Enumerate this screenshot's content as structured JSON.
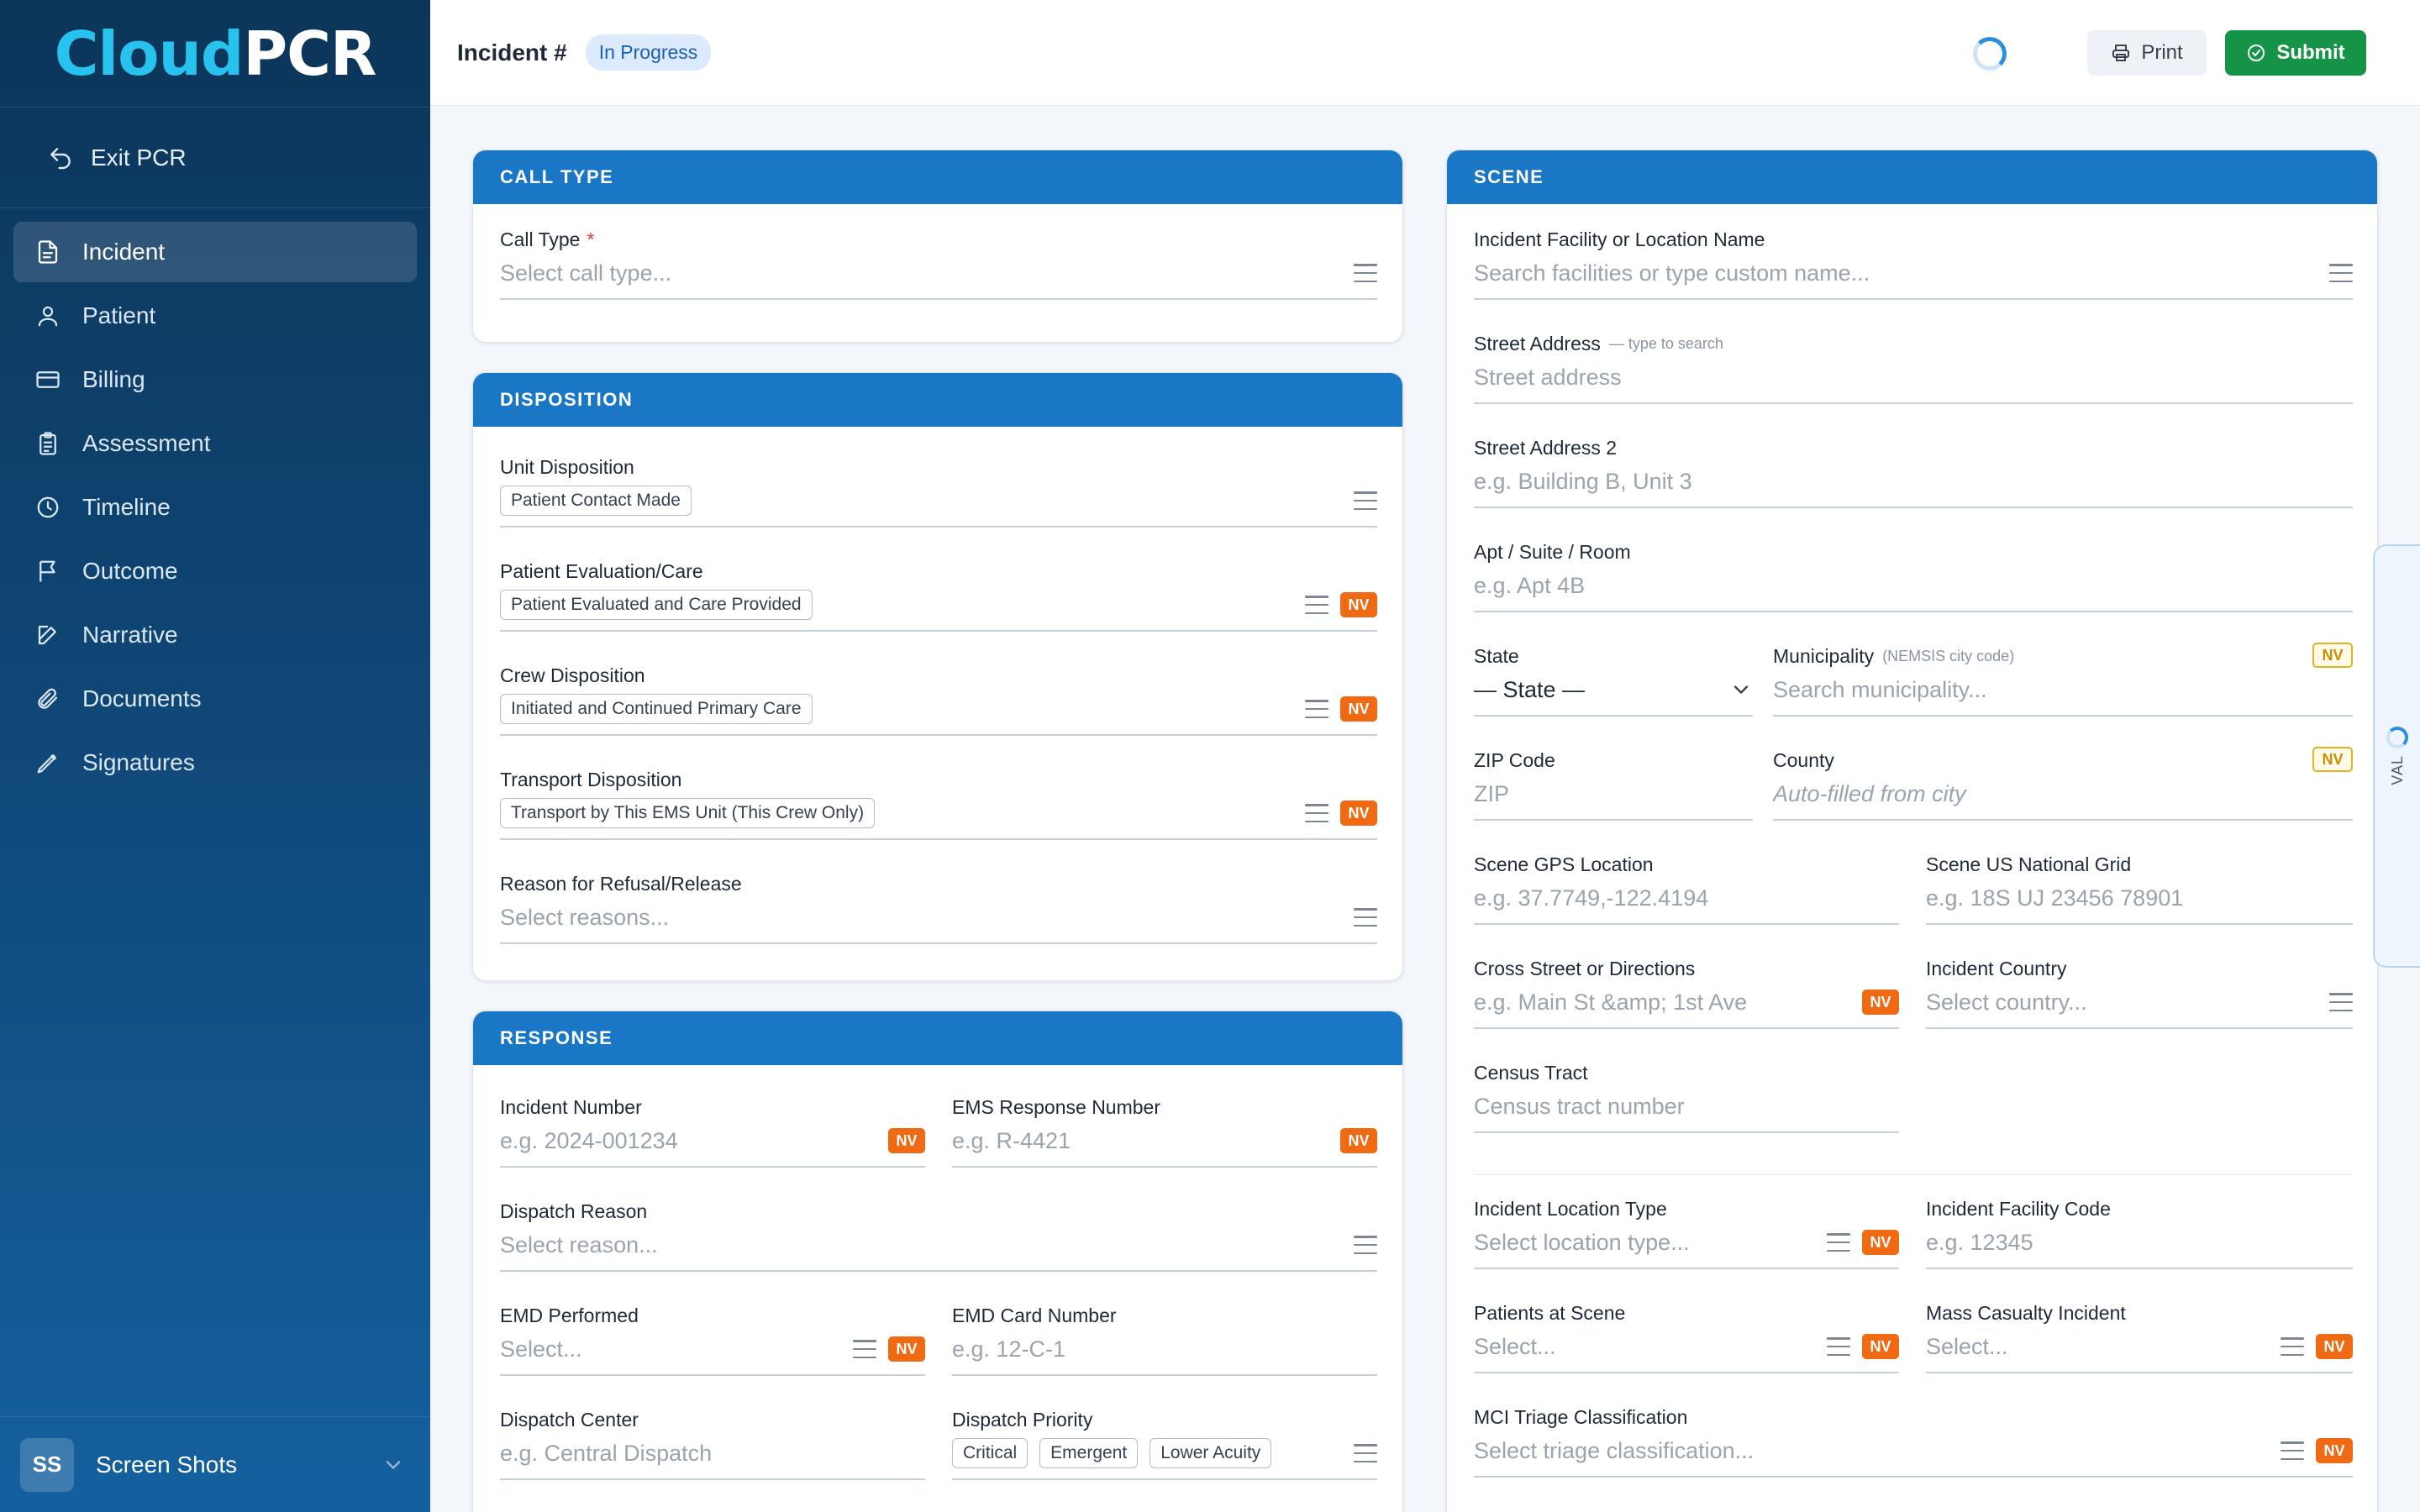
{
  "app": {
    "logo_part1": "Cloud",
    "logo_part2": "PCR",
    "brand_color": "#1977c6",
    "accent_cyan": "#27c3ee"
  },
  "sidebar": {
    "exit_label": "Exit PCR",
    "items": [
      {
        "label": "Incident",
        "icon": "document-icon",
        "active": true
      },
      {
        "label": "Patient",
        "icon": "person-icon"
      },
      {
        "label": "Billing",
        "icon": "credit-card-icon"
      },
      {
        "label": "Assessment",
        "icon": "clipboard-icon"
      },
      {
        "label": "Timeline",
        "icon": "clock-icon"
      },
      {
        "label": "Outcome",
        "icon": "flag-icon"
      },
      {
        "label": "Narrative",
        "icon": "edit-icon"
      },
      {
        "label": "Documents",
        "icon": "paperclip-icon"
      },
      {
        "label": "Signatures",
        "icon": "pen-icon"
      }
    ],
    "user": {
      "initials": "SS",
      "name": "Screen Shots"
    }
  },
  "header": {
    "title": "Incident #",
    "status": "In Progress",
    "print_label": "Print",
    "submit_label": "Submit"
  },
  "call_type": {
    "heading": "CALL TYPE",
    "field_label": "Call Type",
    "required_mark": "*",
    "placeholder": "Select call type..."
  },
  "disposition": {
    "heading": "DISPOSITION",
    "unit": {
      "label": "Unit Disposition",
      "value": "Patient Contact Made"
    },
    "eval": {
      "label": "Patient Evaluation/Care",
      "value": "Patient Evaluated and Care Provided"
    },
    "crew": {
      "label": "Crew Disposition",
      "value": "Initiated and Continued Primary Care"
    },
    "transport": {
      "label": "Transport Disposition",
      "value": "Transport by This EMS Unit (This Crew Only)"
    },
    "refusal": {
      "label": "Reason for Refusal/Release",
      "placeholder": "Select reasons..."
    }
  },
  "response": {
    "heading": "RESPONSE",
    "incident_number": {
      "label": "Incident Number",
      "placeholder": "e.g. 2024-001234"
    },
    "ems_response": {
      "label": "EMS Response Number",
      "placeholder": "e.g. R-4421"
    },
    "dispatch_reason": {
      "label": "Dispatch Reason",
      "placeholder": "Select reason..."
    },
    "emd_performed": {
      "label": "EMD Performed",
      "placeholder": "Select..."
    },
    "emd_card": {
      "label": "EMD Card Number",
      "placeholder": "e.g. 12-C-1"
    },
    "dispatch_center": {
      "label": "Dispatch Center",
      "placeholder": "e.g. Central Dispatch"
    },
    "dispatch_priority": {
      "label": "Dispatch Priority",
      "options": [
        "Critical",
        "Emergent",
        "Lower Acuity"
      ]
    }
  },
  "scene": {
    "heading": "SCENE",
    "facility": {
      "label": "Incident Facility or Location Name",
      "placeholder": "Search facilities or type custom name..."
    },
    "street": {
      "label": "Street Address",
      "hint": "— type to search",
      "placeholder": "Street address"
    },
    "street2": {
      "label": "Street Address 2",
      "placeholder": "e.g. Building B, Unit 3"
    },
    "apt": {
      "label": "Apt / Suite / Room",
      "placeholder": "e.g. Apt 4B"
    },
    "state": {
      "label": "State",
      "value": "— State —"
    },
    "municipality": {
      "label": "Municipality",
      "hint": "(NEMSIS city code)",
      "placeholder": "Search municipality..."
    },
    "zip": {
      "label": "ZIP Code",
      "placeholder": "ZIP"
    },
    "county": {
      "label": "County",
      "placeholder": "Auto-filled from city"
    },
    "gps": {
      "label": "Scene GPS Location",
      "placeholder": "e.g. 37.7749,-122.4194"
    },
    "usng": {
      "label": "Scene US National Grid",
      "placeholder": "e.g. 18S UJ 23456 78901"
    },
    "cross": {
      "label": "Cross Street or Directions",
      "placeholder": "e.g. Main St &amp; 1st Ave"
    },
    "country": {
      "label": "Incident Country",
      "placeholder": "Select country..."
    },
    "census": {
      "label": "Census Tract",
      "placeholder": "Census tract number"
    },
    "location_type": {
      "label": "Incident Location Type",
      "placeholder": "Select location type..."
    },
    "facility_code": {
      "label": "Incident Facility Code",
      "placeholder": "e.g. 12345"
    },
    "patients": {
      "label": "Patients at Scene",
      "placeholder": "Select..."
    },
    "mci": {
      "label": "Mass Casualty Incident",
      "placeholder": "Select..."
    },
    "triage": {
      "label": "MCI Triage Classification",
      "placeholder": "Select triage classification..."
    }
  },
  "nv_label": "NV",
  "val_tab_label": "VAL"
}
